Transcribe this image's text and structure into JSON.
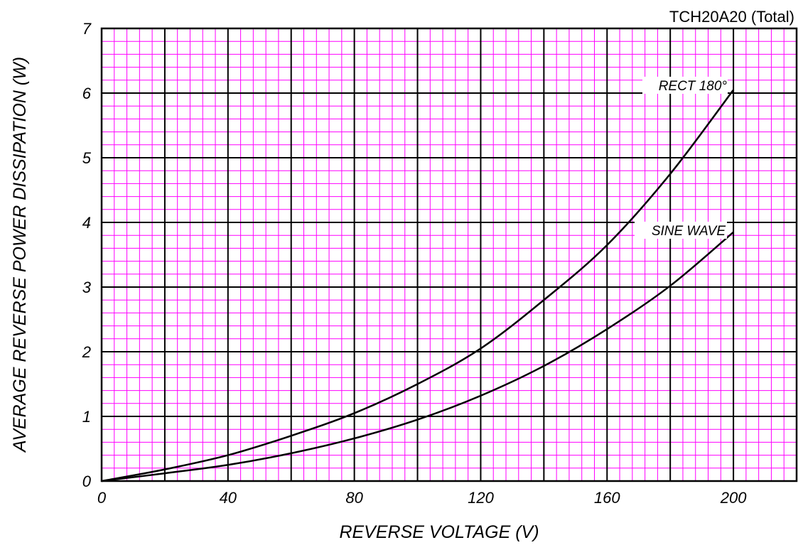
{
  "chart_data": {
    "type": "line",
    "title": "TCH20A20 (Total)",
    "xlabel": "REVERSE VOLTAGE (V)",
    "ylabel": "AVERAGE REVERSE POWER DISSIPATION (W)",
    "xlim": [
      0,
      220
    ],
    "ylim": [
      0,
      7
    ],
    "xticks": [
      0,
      40,
      80,
      120,
      160,
      200
    ],
    "yticks": [
      0,
      1,
      2,
      3,
      4,
      5,
      6,
      7
    ],
    "grid": true,
    "colors": {
      "minor_grid": "#ff00ff",
      "major_grid": "#000000",
      "line": "#000000",
      "background": "#ffffff"
    },
    "series": [
      {
        "name": "RECT 180°",
        "x": [
          0,
          20,
          40,
          60,
          80,
          100,
          120,
          140,
          160,
          180,
          200
        ],
        "y": [
          0,
          0.18,
          0.4,
          0.7,
          1.05,
          1.5,
          2.05,
          2.8,
          3.65,
          4.75,
          6.05
        ]
      },
      {
        "name": "SINE WAVE",
        "x": [
          0,
          20,
          40,
          60,
          80,
          100,
          120,
          140,
          160,
          180,
          200
        ],
        "y": [
          0,
          0.12,
          0.25,
          0.43,
          0.66,
          0.95,
          1.32,
          1.78,
          2.35,
          3.02,
          3.85
        ]
      }
    ]
  }
}
